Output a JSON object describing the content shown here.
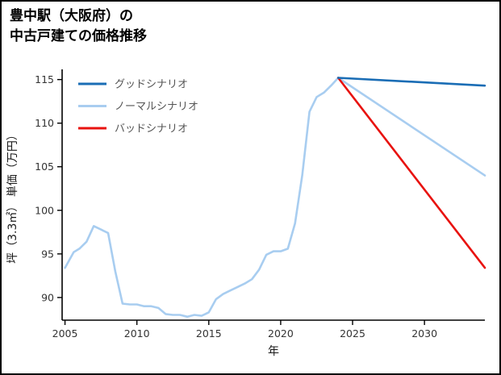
{
  "chart_data": {
    "type": "line",
    "title": "豊中駅（大阪府）の\n中古戸建ての価格推移",
    "xlabel": "年",
    "ylabel": "坪（3.3㎡） 単価（万円）",
    "xlim": [
      2004.8,
      2034.2
    ],
    "ylim": [
      87.4,
      115.8
    ],
    "xticks": [
      2005,
      2010,
      2015,
      2020,
      2025,
      2030
    ],
    "yticks": [
      90,
      95,
      100,
      105,
      110,
      115
    ],
    "grid": false,
    "legend_position": "upper-left",
    "axis_color": "#000000",
    "series": [
      {
        "id": "good",
        "name": "グッドシナリオ",
        "color": "#1a6db5",
        "in_legend": true,
        "z": 4,
        "x": [
          2024,
          2034.2
        ],
        "y": [
          115.2,
          114.3
        ]
      },
      {
        "id": "normal",
        "name": "ノーマルシナリオ",
        "color": "#a8cdf0",
        "in_legend": true,
        "z": 2,
        "x": [
          2024,
          2034.2
        ],
        "y": [
          115.2,
          104.0
        ]
      },
      {
        "id": "bad",
        "name": "バッドシナリオ",
        "color": "#e8120f",
        "in_legend": true,
        "z": 3,
        "x": [
          2024,
          2034.2
        ],
        "y": [
          115.2,
          93.4
        ]
      },
      {
        "id": "history",
        "name": "",
        "color": "#a8cdf0",
        "in_legend": false,
        "z": 1,
        "x": [
          2005,
          2005.6,
          2006,
          2006.5,
          2007,
          2007.5,
          2008,
          2008.5,
          2009,
          2009.5,
          2010,
          2010.5,
          2011,
          2011.5,
          2012,
          2012.5,
          2013,
          2013.5,
          2014,
          2014.5,
          2015,
          2015.5,
          2016,
          2016.5,
          2017,
          2017.5,
          2018,
          2018.5,
          2019,
          2019.5,
          2020,
          2020.5,
          2021,
          2021.5,
          2022,
          2022.5,
          2023,
          2023.5,
          2024
        ],
        "y": [
          93.4,
          95.2,
          95.6,
          96.4,
          98.2,
          97.8,
          97.4,
          93.0,
          89.3,
          89.2,
          89.2,
          89.0,
          89.0,
          88.8,
          88.1,
          88.0,
          88.0,
          87.8,
          88.0,
          87.9,
          88.3,
          89.8,
          90.4,
          90.8,
          91.2,
          91.6,
          92.1,
          93.2,
          94.9,
          95.3,
          95.3,
          95.6,
          98.5,
          104.0,
          111.3,
          113.0,
          113.5,
          114.3,
          115.2
        ]
      }
    ]
  }
}
